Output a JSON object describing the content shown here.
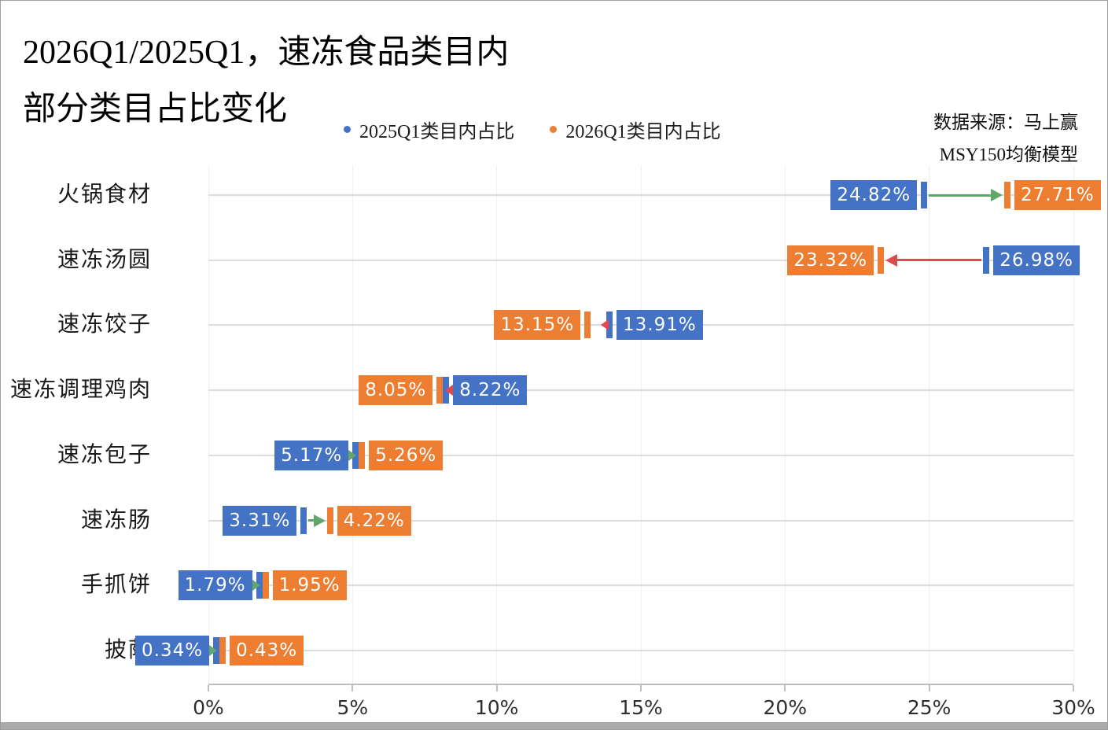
{
  "title": {
    "line1": "2026Q1/2025Q1，速冻食品类目内",
    "line2": "部分类目占比变化"
  },
  "legend": {
    "items": [
      {
        "label": "2025Q1类目内占比",
        "color": "#4472C4"
      },
      {
        "label": "2026Q1类目内占比",
        "color": "#ED7D31"
      }
    ]
  },
  "source": {
    "line1": "数据来源：马上赢",
    "line2": "MSY150均衡模型"
  },
  "chart_data": {
    "type": "dumbbell",
    "orientation": "horizontal",
    "title": "2026Q1/2025Q1，速冻食品类目内部分类目占比变化",
    "categories": [
      "火锅食材",
      "速冻汤圆",
      "速冻饺子",
      "速冻调理鸡肉",
      "速冻包子",
      "速冻肠",
      "手抓饼",
      "披萨"
    ],
    "series": [
      {
        "name": "2025Q1类目内占比",
        "color": "#4472C4",
        "values": [
          24.82,
          26.98,
          13.91,
          8.22,
          5.17,
          3.31,
          1.79,
          0.34
        ]
      },
      {
        "name": "2026Q1类目内占比",
        "color": "#ED7D31",
        "values": [
          27.71,
          23.32,
          13.15,
          8.05,
          5.26,
          4.22,
          1.95,
          0.43
        ]
      }
    ],
    "value_label_format": "0.00%",
    "x_axis": {
      "min": 0,
      "max": 30,
      "tick_step": 5,
      "tick_labels": [
        "0%",
        "5%",
        "10%",
        "15%",
        "20%",
        "25%",
        "30%"
      ]
    },
    "arrow_colors": {
      "increase": "#63A66D",
      "decrease": "#E0494F"
    },
    "grid": {
      "horizontal_row_lines": true,
      "vertical_lines": true
    },
    "legend_position": "top-center",
    "value_labels_on": true
  }
}
